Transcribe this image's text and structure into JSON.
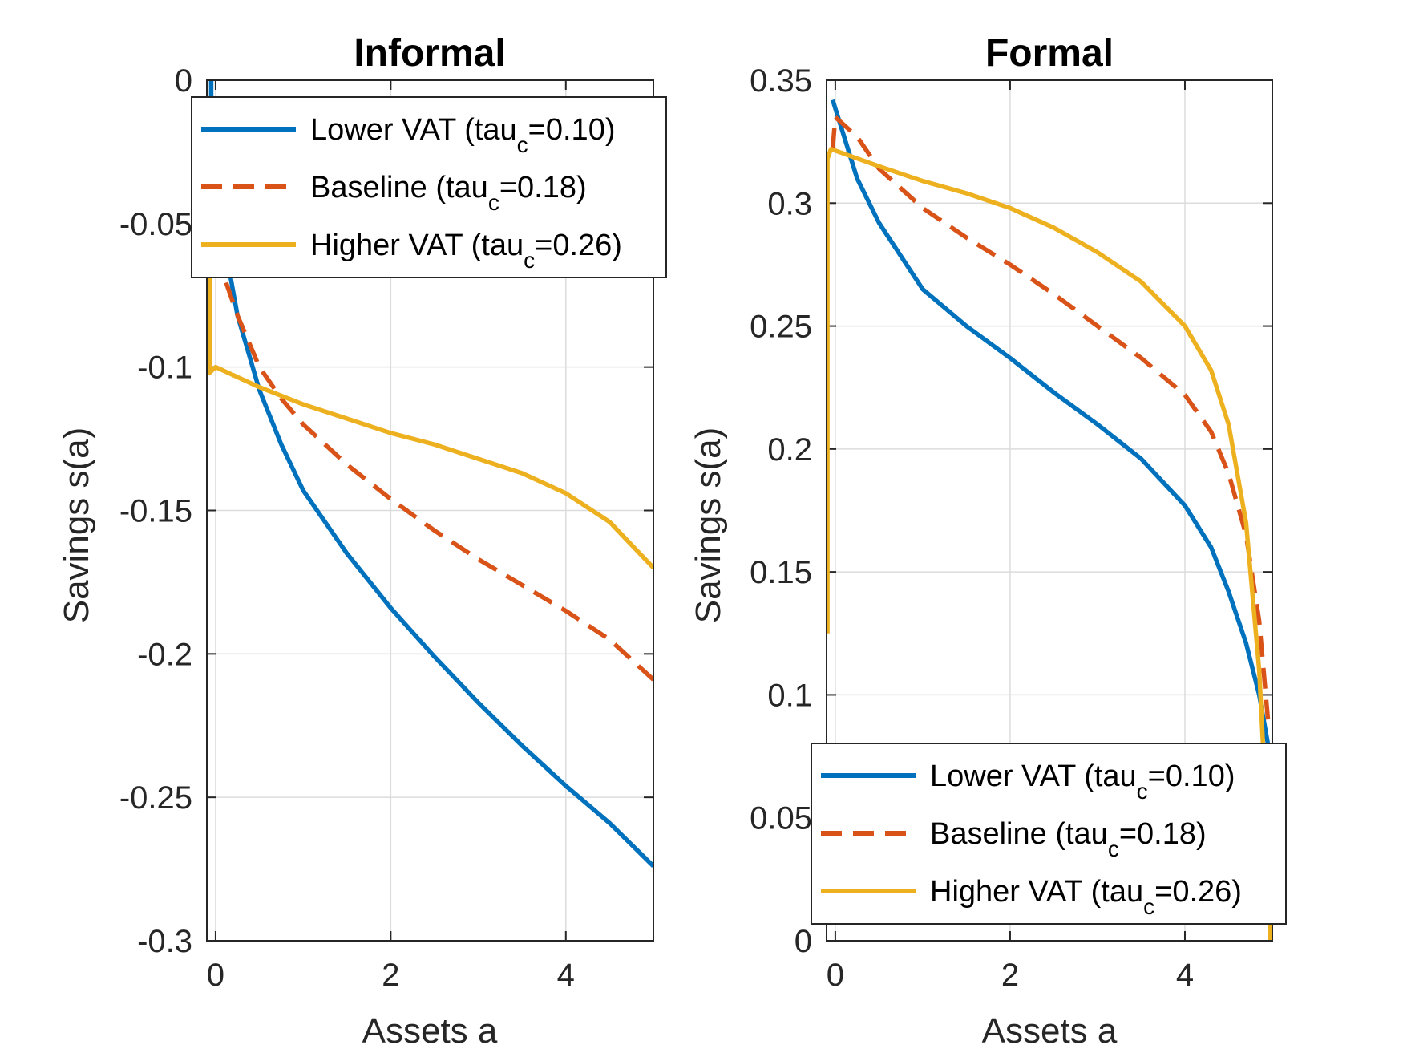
{
  "chart_data": [
    {
      "type": "line",
      "title": "Informal",
      "xlabel": "Assets a",
      "ylabel": "Savings s(a)",
      "xlim": [
        -0.1,
        5
      ],
      "ylim": [
        -0.3,
        0
      ],
      "xticks": [
        0,
        2,
        4
      ],
      "yticks": [
        -0.3,
        -0.25,
        -0.2,
        -0.15,
        -0.1,
        -0.05,
        0
      ],
      "xtick_labels": [
        "0",
        "2",
        "4"
      ],
      "ytick_labels": [
        "-0.3",
        "-0.25",
        "-0.2",
        "-0.15",
        "-0.1",
        "-0.05",
        "0"
      ],
      "grid": true,
      "legend_position": "top",
      "series": [
        {
          "name": "Lower VAT (tau_c=0.10)",
          "label_main": "Lower VAT (tau",
          "label_sub": "c",
          "label_end": "=0.10)",
          "color": "#0072BD",
          "dash": "solid",
          "x": [
            -0.05,
            -0.05,
            0,
            0.25,
            0.5,
            0.75,
            1.0,
            1.5,
            2.0,
            2.5,
            3.0,
            3.5,
            4.0,
            4.5,
            5.0
          ],
          "y": [
            0,
            -0.02,
            -0.04,
            -0.082,
            -0.108,
            -0.127,
            -0.143,
            -0.165,
            -0.184,
            -0.201,
            -0.217,
            -0.232,
            -0.246,
            -0.259,
            -0.274
          ]
        },
        {
          "name": "Baseline (tau_c=0.18)",
          "label_main": "Baseline (tau",
          "label_sub": "c",
          "label_end": "=0.18)",
          "color": "#D95319",
          "dash": "dashed",
          "x": [
            0,
            0.25,
            0.5,
            0.75,
            1.0,
            1.5,
            2.0,
            2.5,
            3.0,
            3.5,
            4.0,
            4.5,
            5.0
          ],
          "y": [
            -0.06,
            -0.082,
            -0.1,
            -0.111,
            -0.12,
            -0.134,
            -0.146,
            -0.157,
            -0.167,
            -0.176,
            -0.185,
            -0.195,
            -0.209
          ]
        },
        {
          "name": "Higher VAT (tau_c=0.26)",
          "label_main": "Higher VAT (tau",
          "label_sub": "c",
          "label_end": "=0.26)",
          "color": "#EDB120",
          "dash": "solid",
          "x": [
            -0.07,
            -0.07,
            0,
            0.5,
            1.0,
            1.5,
            2.0,
            2.5,
            3.0,
            3.5,
            4.0,
            4.5,
            5.0
          ],
          "y": [
            -0.06,
            -0.102,
            -0.1,
            -0.107,
            -0.113,
            -0.118,
            -0.123,
            -0.127,
            -0.132,
            -0.137,
            -0.144,
            -0.154,
            -0.17
          ]
        }
      ]
    },
    {
      "type": "line",
      "title": "Formal",
      "xlabel": "Assets a",
      "ylabel": "Savings s(a)",
      "xlim": [
        -0.1,
        5
      ],
      "ylim": [
        0,
        0.35
      ],
      "xticks": [
        0,
        2,
        4
      ],
      "yticks": [
        0,
        0.05,
        0.1,
        0.15,
        0.2,
        0.25,
        0.3,
        0.35
      ],
      "xtick_labels": [
        "0",
        "2",
        "4"
      ],
      "ytick_labels": [
        "0",
        "0.05",
        "0.1",
        "0.15",
        "0.2",
        "0.25",
        "0.3",
        "0.35"
      ],
      "grid": true,
      "legend_position": "bottom",
      "series": [
        {
          "name": "Lower VAT (tau_c=0.10)",
          "label_main": "Lower VAT (tau",
          "label_sub": "c",
          "label_end": "=0.10)",
          "color": "#0072BD",
          "dash": "solid",
          "x": [
            -0.03,
            0.25,
            0.5,
            1.0,
            1.5,
            2.0,
            2.5,
            3.0,
            3.5,
            4.0,
            4.3,
            4.5,
            4.7,
            4.85,
            4.95
          ],
          "y": [
            0.342,
            0.31,
            0.292,
            0.265,
            0.25,
            0.237,
            0.223,
            0.21,
            0.196,
            0.177,
            0.16,
            0.142,
            0.121,
            0.1,
            0.08
          ]
        },
        {
          "name": "Baseline (tau_c=0.18)",
          "label_main": "Baseline (tau",
          "label_sub": "c",
          "label_end": "=0.18)",
          "color": "#D95319",
          "dash": "dashed",
          "x": [
            -0.03,
            0,
            0.25,
            0.5,
            1.0,
            1.5,
            2.0,
            2.5,
            3.0,
            3.5,
            4.0,
            4.3,
            4.5,
            4.7,
            4.85,
            4.95
          ],
          "y": [
            0.322,
            0.335,
            0.327,
            0.314,
            0.298,
            0.286,
            0.275,
            0.263,
            0.25,
            0.237,
            0.222,
            0.207,
            0.19,
            0.165,
            0.13,
            0.09
          ]
        },
        {
          "name": "Higher VAT (tau_c=0.26)",
          "label_main": "Higher VAT (tau",
          "label_sub": "c",
          "label_end": "=0.26)",
          "color": "#EDB120",
          "dash": "solid",
          "x": [
            -0.09,
            -0.09,
            -0.05,
            0.5,
            1.0,
            1.5,
            2.0,
            2.5,
            3.0,
            3.5,
            4.0,
            4.3,
            4.5,
            4.7,
            4.85,
            4.95,
            4.98
          ],
          "y": [
            0.125,
            0.318,
            0.322,
            0.315,
            0.309,
            0.304,
            0.298,
            0.29,
            0.28,
            0.268,
            0.25,
            0.232,
            0.21,
            0.17,
            0.11,
            0.04,
            0
          ]
        }
      ]
    }
  ]
}
